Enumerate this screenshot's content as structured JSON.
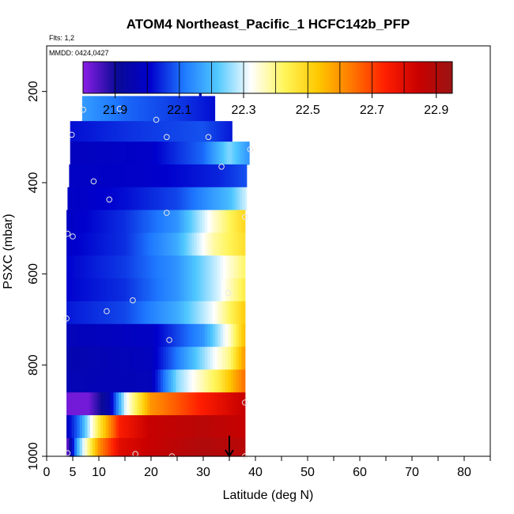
{
  "chart_data": {
    "type": "heatmap",
    "title": "ATOM4 Northeast_Pacific_1 HCFC142b_PFP",
    "flights_label": "Flts: 1,2",
    "mmdd_label": "MMDD: 0424,0427",
    "xlabel": "Latitude (deg N)",
    "ylabel": "PSXC (mbar)",
    "xlim": [
      0,
      85
    ],
    "ylim": [
      1000,
      100
    ],
    "xticks": [
      0,
      5,
      10,
      20,
      30,
      40,
      50,
      60,
      70,
      80
    ],
    "yticks": [
      200,
      400,
      600,
      800,
      1000
    ],
    "colorbar": {
      "min": 21.8,
      "max": 22.95,
      "tick_values": [
        21.9,
        22.1,
        22.3,
        22.5,
        22.7,
        22.9
      ],
      "tick_labels": [
        "21.9",
        "22.1",
        "22.3",
        "22.5",
        "22.7",
        "22.9"
      ],
      "colors": [
        "#8b1ee6",
        "#0a0a96",
        "#0000cd",
        "#1e78ff",
        "#50c8ff",
        "#ffffff",
        "#fff55a",
        "#ffc800",
        "#ff7800",
        "#ff1e00",
        "#c80000",
        "#9a1414"
      ]
    },
    "bands": [
      {
        "p_top": 190,
        "p_bottom": 210,
        "lat_min": 29.2,
        "lat_max": 29.6,
        "lat_stops": [
          29.2,
          29.6
        ],
        "values": [
          21.96,
          21.96
        ]
      },
      {
        "p_top": 210,
        "p_bottom": 265,
        "lat_min": 6.8,
        "lat_max": 32.2,
        "lat_stops": [
          6.8,
          15,
          25,
          32.2
        ],
        "values": [
          22.16,
          22.1,
          22.06,
          22.02
        ]
      },
      {
        "p_top": 265,
        "p_bottom": 310,
        "lat_min": 4.5,
        "lat_max": 35.5,
        "lat_stops": [
          4.5,
          15,
          30,
          35.5
        ],
        "values": [
          22.02,
          22.05,
          22.08,
          22.03
        ]
      },
      {
        "p_top": 310,
        "p_bottom": 360,
        "lat_min": 4.5,
        "lat_max": 38.8,
        "lat_stops": [
          4.5,
          20,
          30,
          35,
          38.8
        ],
        "values": [
          21.98,
          22.0,
          22.1,
          22.25,
          22.15
        ]
      },
      {
        "p_top": 360,
        "p_bottom": 410,
        "lat_min": 4.3,
        "lat_max": 38.3,
        "lat_stops": [
          4.3,
          20,
          33,
          38.3
        ],
        "values": [
          21.99,
          22.0,
          22.04,
          22.08
        ]
      },
      {
        "p_top": 410,
        "p_bottom": 460,
        "lat_min": 4.0,
        "lat_max": 38.3,
        "lat_stops": [
          4.0,
          15,
          25,
          35,
          38.3
        ],
        "values": [
          21.99,
          22.02,
          22.07,
          22.2,
          22.3
        ]
      },
      {
        "p_top": 460,
        "p_bottom": 510,
        "lat_min": 3.8,
        "lat_max": 38.0,
        "lat_stops": [
          3.8,
          15,
          25,
          32,
          38
        ],
        "values": [
          21.99,
          22.05,
          22.15,
          22.35,
          22.5
        ]
      },
      {
        "p_top": 510,
        "p_bottom": 560,
        "lat_min": 3.8,
        "lat_max": 38.0,
        "lat_stops": [
          3.8,
          15,
          25,
          32,
          38
        ],
        "values": [
          22.0,
          22.05,
          22.18,
          22.38,
          22.48
        ]
      },
      {
        "p_top": 560,
        "p_bottom": 610,
        "lat_min": 3.8,
        "lat_max": 38.0,
        "lat_stops": [
          3.8,
          15,
          25,
          33,
          38
        ],
        "values": [
          22.01,
          22.06,
          22.15,
          22.3,
          22.42
        ]
      },
      {
        "p_top": 610,
        "p_bottom": 660,
        "lat_min": 3.8,
        "lat_max": 38.0,
        "lat_stops": [
          3.8,
          15,
          25,
          33,
          38
        ],
        "values": [
          22.01,
          22.05,
          22.15,
          22.3,
          22.45
        ]
      },
      {
        "p_top": 660,
        "p_bottom": 710,
        "lat_min": 3.8,
        "lat_max": 38.0,
        "lat_stops": [
          3.8,
          15,
          25,
          32,
          38
        ],
        "values": [
          22.03,
          22.07,
          22.18,
          22.32,
          22.52
        ]
      },
      {
        "p_top": 710,
        "p_bottom": 760,
        "lat_min": 3.8,
        "lat_max": 38.0,
        "lat_stops": [
          3.8,
          20,
          30,
          35,
          38
        ],
        "values": [
          21.97,
          21.99,
          22.15,
          22.35,
          22.55
        ]
      },
      {
        "p_top": 760,
        "p_bottom": 810,
        "lat_min": 3.8,
        "lat_max": 38.0,
        "lat_stops": [
          3.8,
          20,
          28,
          35,
          38
        ],
        "values": [
          21.95,
          21.98,
          22.2,
          22.4,
          22.6
        ]
      },
      {
        "p_top": 810,
        "p_bottom": 860,
        "lat_min": 3.8,
        "lat_max": 38.0,
        "lat_stops": [
          3.8,
          20,
          25,
          33,
          38
        ],
        "values": [
          21.96,
          21.97,
          22.25,
          22.45,
          22.65
        ]
      },
      {
        "p_top": 860,
        "p_bottom": 910,
        "lat_min": 3.8,
        "lat_max": 38.0,
        "lat_stops": [
          3.8,
          8,
          12,
          15,
          20,
          30,
          38
        ],
        "values": [
          21.82,
          21.82,
          21.95,
          22.3,
          22.6,
          22.75,
          22.85
        ]
      },
      {
        "p_top": 910,
        "p_bottom": 960,
        "lat_min": 3.8,
        "lat_max": 38.0,
        "lat_stops": [
          3.8,
          6,
          10,
          14,
          20,
          30,
          38
        ],
        "values": [
          21.98,
          22.1,
          22.45,
          22.75,
          22.85,
          22.88,
          22.85
        ]
      },
      {
        "p_top": 960,
        "p_bottom": 1000,
        "lat_min": 3.8,
        "lat_max": 38.0,
        "lat_stops": [
          3.8,
          6,
          10,
          14,
          20,
          30,
          38
        ],
        "values": [
          21.8,
          22.2,
          22.6,
          22.8,
          22.85,
          22.9,
          22.88
        ]
      }
    ],
    "sample_points": [
      {
        "lat": 29.5,
        "p": 195
      },
      {
        "lat": 7.0,
        "p": 240
      },
      {
        "lat": 14.0,
        "p": 238
      },
      {
        "lat": 21.0,
        "p": 262
      },
      {
        "lat": 4.8,
        "p": 295
      },
      {
        "lat": 23.0,
        "p": 300
      },
      {
        "lat": 31.0,
        "p": 300
      },
      {
        "lat": 39.0,
        "p": 327
      },
      {
        "lat": 33.5,
        "p": 365
      },
      {
        "lat": 9.0,
        "p": 397
      },
      {
        "lat": 12.0,
        "p": 437
      },
      {
        "lat": 23.0,
        "p": 466
      },
      {
        "lat": 38.0,
        "p": 475
      },
      {
        "lat": 4.0,
        "p": 512
      },
      {
        "lat": 5.0,
        "p": 518
      },
      {
        "lat": 34.8,
        "p": 642
      },
      {
        "lat": 16.5,
        "p": 658
      },
      {
        "lat": 11.5,
        "p": 682
      },
      {
        "lat": 3.8,
        "p": 698
      },
      {
        "lat": 23.5,
        "p": 745
      },
      {
        "lat": 38.0,
        "p": 882
      },
      {
        "lat": 4.0,
        "p": 993
      },
      {
        "lat": 17.0,
        "p": 995
      },
      {
        "lat": 24.0,
        "p": 1000
      },
      {
        "lat": 38.0,
        "p": 1000
      }
    ],
    "arrow": {
      "lat": 35,
      "p_from": 955,
      "p_to": 1000
    }
  }
}
